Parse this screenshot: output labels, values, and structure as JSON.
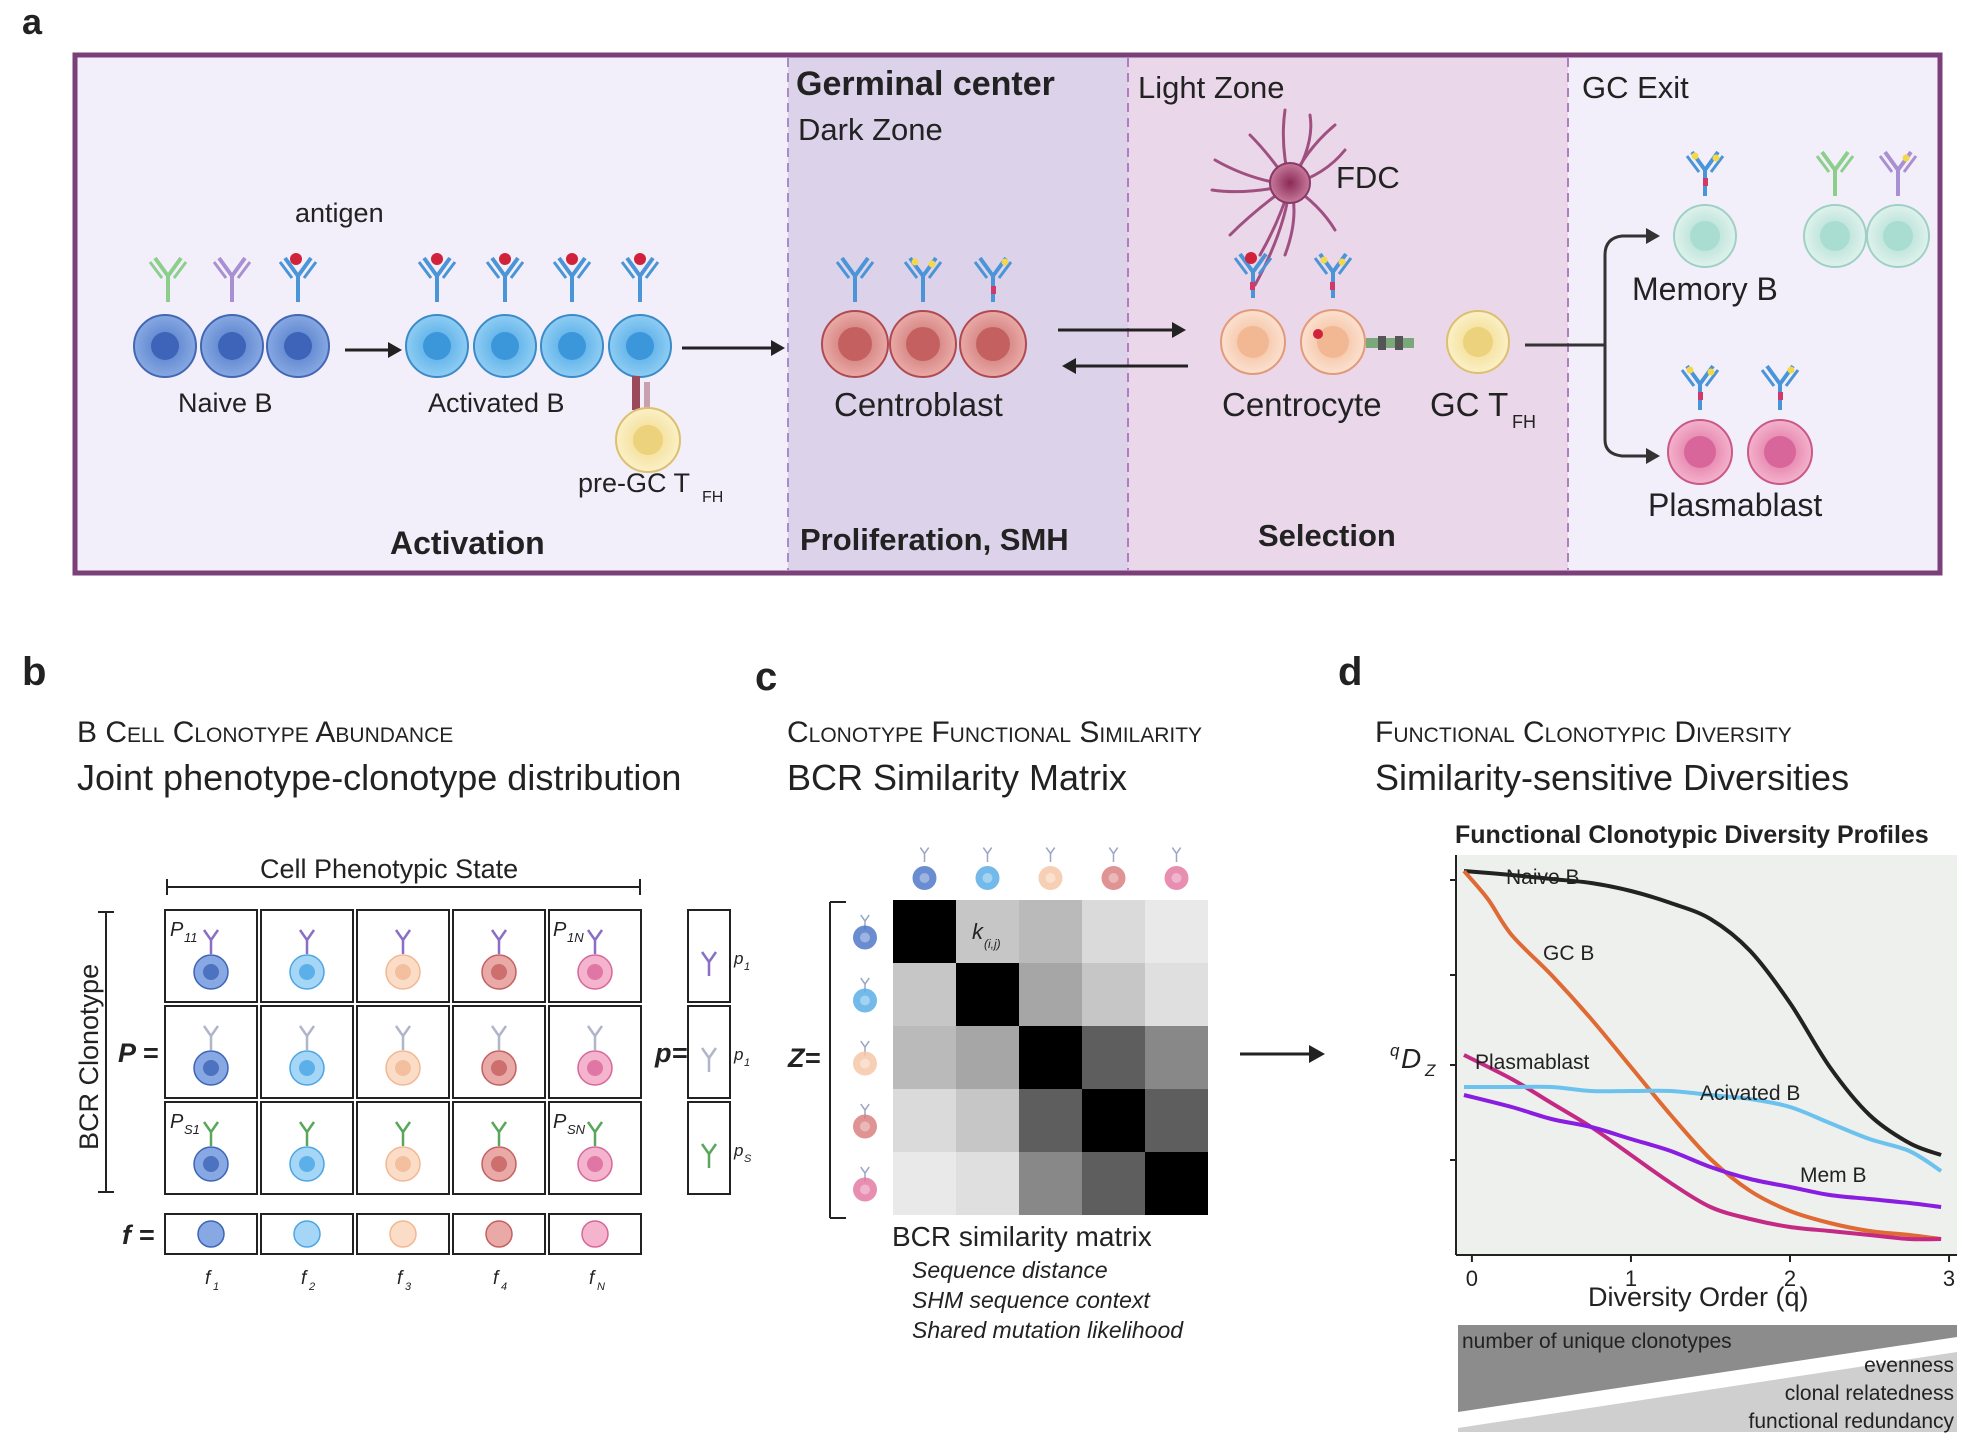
{
  "panel_a": {
    "letter": "a",
    "gc_title": "Germinal center",
    "dark_zone": "Dark Zone",
    "light_zone": "Light Zone",
    "gc_exit": "GC Exit",
    "antigen": "antigen",
    "naive_b": "Naive B",
    "activated_b": "Activated B",
    "pre_gc_tfh_main": "pre-GC T",
    "pre_gc_tfh_sub": "FH",
    "centroblast": "Centroblast",
    "centrocyte": "Centrocyte",
    "gc_tfh_main": "GC T",
    "gc_tfh_sub": "FH",
    "fdc": "FDC",
    "memory_b": "Memory B",
    "plasmablast": "Plasmablast",
    "stage_activation": "Activation",
    "stage_proliferation": "Proliferation, SMH",
    "stage_selection": "Selection",
    "colors": {
      "frame": "#7b3f7a",
      "dark_zone_fill": "#dcd3ea",
      "light_zone_fill": "#ead8ea",
      "bg_fill": "#f3effa",
      "naive": "#6a8fd6",
      "activated": "#5aaee8",
      "centroblast": "#d98080",
      "centrocyte": "#f6c7a8",
      "tfh": "#f5e6a0",
      "memory": "#b9e2d8",
      "plasma": "#e37aa3"
    }
  },
  "panel_b": {
    "letter": "b",
    "title_smallcaps": "B Cell Clonotype Abundance",
    "subtitle": "Joint phenotype-clonotype distribution",
    "col_header": "Cell Phenotypic State",
    "row_header": "BCR Clonotype",
    "P_label": "P =",
    "p_label": "p=",
    "f_label": "f =",
    "cell_labels": {
      "p11": "P",
      "p11_sub": "11",
      "p1n": "P",
      "p1n_sub": "1N",
      "ps1": "P",
      "ps1_sub": "S1",
      "psn": "P",
      "psn_sub": "SN"
    },
    "p_entries": [
      {
        "main": "p",
        "sub": "1"
      },
      {
        "main": "p",
        "sub": "1"
      },
      {
        "main": "p",
        "sub": "S"
      }
    ],
    "f_entries": [
      {
        "main": "f",
        "sub": "1"
      },
      {
        "main": "f",
        "sub": "2"
      },
      {
        "main": "f",
        "sub": "3"
      },
      {
        "main": "f",
        "sub": "4"
      },
      {
        "main": "f",
        "sub": "N"
      }
    ]
  },
  "panel_c": {
    "letter": "c",
    "title_smallcaps": "Clonotype Functional Similarity",
    "subtitle": "BCR Similarity Matrix",
    "Z_label": "Z=",
    "k_label": "k",
    "k_sub": "(i,j)",
    "matrix_title": "BCR similarity matrix",
    "matrix_notes": [
      "Sequence distance",
      "SHM sequence context",
      "Shared mutation likelihood"
    ],
    "similarity_matrix": [
      [
        1.0,
        0.2,
        0.25,
        0.12,
        0.06
      ],
      [
        0.2,
        1.0,
        0.33,
        0.2,
        0.1
      ],
      [
        0.25,
        0.33,
        1.0,
        0.62,
        0.45
      ],
      [
        0.12,
        0.2,
        0.62,
        1.0,
        0.62
      ],
      [
        0.06,
        0.1,
        0.45,
        0.62,
        1.0
      ]
    ]
  },
  "panel_d": {
    "letter": "d",
    "title_smallcaps": "Functional Clonotypic Diversity",
    "subtitle": "Similarity-sensitive Diversities",
    "triangle_labels": [
      "number of unique clonotypes",
      "evenness",
      "clonal relatedness",
      "functional redundancy"
    ]
  },
  "chart_data": {
    "type": "line",
    "title": "Functional Clonotypic Diversity Profiles",
    "xlabel": "Diversity Order (q)",
    "ylabel_main": "D",
    "ylabel_sup": "q",
    "ylabel_sub": "Z",
    "xlim": [
      -0.1,
      3.05
    ],
    "ylim": [
      0,
      1
    ],
    "xticks": [
      0,
      1,
      2,
      3
    ],
    "xtick_labels": [
      "0",
      "1",
      "2",
      "3"
    ],
    "grid": false,
    "background": "#eef0ee",
    "series": [
      {
        "name": "Naive B",
        "color": "#222222",
        "x": [
          -0.05,
          0.25,
          0.5,
          0.75,
          1.0,
          1.25,
          1.5,
          1.75,
          2.0,
          2.25,
          2.5,
          2.75,
          2.95
        ],
        "y": [
          0.96,
          0.95,
          0.94,
          0.93,
          0.91,
          0.88,
          0.84,
          0.76,
          0.63,
          0.47,
          0.35,
          0.28,
          0.25
        ]
      },
      {
        "name": "GC B",
        "color": "#e06a33",
        "x": [
          -0.05,
          0.1,
          0.25,
          0.5,
          0.75,
          1.0,
          1.25,
          1.5,
          1.75,
          2.0,
          2.25,
          2.5,
          2.75,
          2.95
        ],
        "y": [
          0.96,
          0.89,
          0.8,
          0.7,
          0.59,
          0.47,
          0.35,
          0.24,
          0.16,
          0.11,
          0.08,
          0.06,
          0.05,
          0.04
        ]
      },
      {
        "name": "Plasmablast",
        "color": "#c42a83",
        "x": [
          -0.05,
          0.25,
          0.5,
          0.75,
          1.0,
          1.25,
          1.5,
          1.75,
          2.0,
          2.25,
          2.5,
          2.75,
          2.95
        ],
        "y": [
          0.5,
          0.44,
          0.38,
          0.32,
          0.25,
          0.18,
          0.12,
          0.09,
          0.07,
          0.06,
          0.05,
          0.04,
          0.04
        ]
      },
      {
        "name": "Acivated B",
        "color": "#6cc2ee",
        "x": [
          -0.05,
          0.25,
          0.5,
          0.75,
          1.0,
          1.25,
          1.5,
          1.75,
          2.0,
          2.25,
          2.5,
          2.75,
          2.95
        ],
        "y": [
          0.42,
          0.42,
          0.42,
          0.41,
          0.41,
          0.41,
          0.4,
          0.39,
          0.37,
          0.33,
          0.29,
          0.26,
          0.21
        ]
      },
      {
        "name": "Mem B",
        "color": "#8a1ee0",
        "x": [
          -0.05,
          0.25,
          0.5,
          0.75,
          1.0,
          1.25,
          1.5,
          1.75,
          2.0,
          2.25,
          2.5,
          2.75,
          2.95
        ],
        "y": [
          0.4,
          0.37,
          0.34,
          0.32,
          0.29,
          0.26,
          0.22,
          0.19,
          0.17,
          0.15,
          0.14,
          0.13,
          0.12
        ]
      }
    ]
  }
}
